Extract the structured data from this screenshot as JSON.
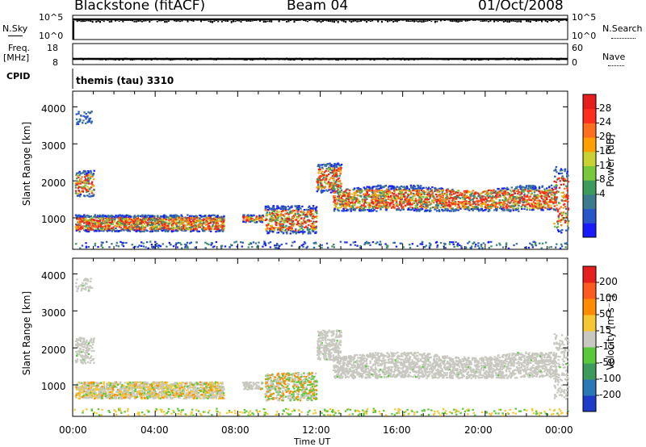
{
  "header": {
    "station": "Blackstone (fitACF)",
    "beam": "Beam 04",
    "date": "01/Oct/2008"
  },
  "panels": {
    "nsky": {
      "label": "N.Sky",
      "ticks": [
        "10^5",
        "10^0"
      ],
      "right_label": "N.Search",
      "right_ticks": [
        "10^5",
        "10^0"
      ]
    },
    "freq": {
      "label_1": "Freq.",
      "label_2": "[MHz]",
      "ticks": [
        "18",
        "8"
      ],
      "right_label": "Nave",
      "right_ticks": [
        "60",
        "0"
      ]
    },
    "cpid": {
      "label": "CPID",
      "value": "themis (tau) 3310"
    }
  },
  "chart_data": [
    {
      "type": "heatmap",
      "name": "power",
      "ylabel": "Slant Range [km]",
      "y_ticks": [
        "4000",
        "3000",
        "2000",
        "1000"
      ],
      "ylim": [
        180,
        4560
      ],
      "xlim": [
        0,
        24
      ],
      "colorbar": {
        "label": "Power [dB]",
        "ticks": [
          "28",
          "24",
          "20",
          "16",
          "12",
          "8",
          "4"
        ],
        "colors": [
          "#1a1aff",
          "#2856c8",
          "#3c7a8c",
          "#3c9a5a",
          "#78c83c",
          "#c8d232",
          "#ffa000",
          "#ff6e1e",
          "#ff2d1e",
          "#e61e1e"
        ]
      }
    },
    {
      "type": "heatmap",
      "name": "velocity",
      "ylabel": "Slant Range [km]",
      "y_ticks": [
        "4000",
        "3000",
        "2000",
        "1000"
      ],
      "ylim": [
        180,
        4560
      ],
      "xlim": [
        0,
        24
      ],
      "colorbar": {
        "label": "Velocity [m s⁻¹]",
        "ticks": [
          "200",
          "100",
          "50",
          "15",
          "-15",
          "-50",
          "-100",
          "-200"
        ],
        "colors": [
          "#1e3cc8",
          "#2a78b4",
          "#3c9a5a",
          "#5ac83c",
          "#c8c8c0",
          "#f5c832",
          "#ff8c00",
          "#ff5a1e",
          "#e61e1e"
        ]
      }
    }
  ],
  "xaxis": {
    "ticks": [
      "00:00",
      "04:00",
      "08:00",
      "12:00",
      "16:00",
      "20:00",
      "00:00"
    ],
    "label": "Time UT"
  }
}
